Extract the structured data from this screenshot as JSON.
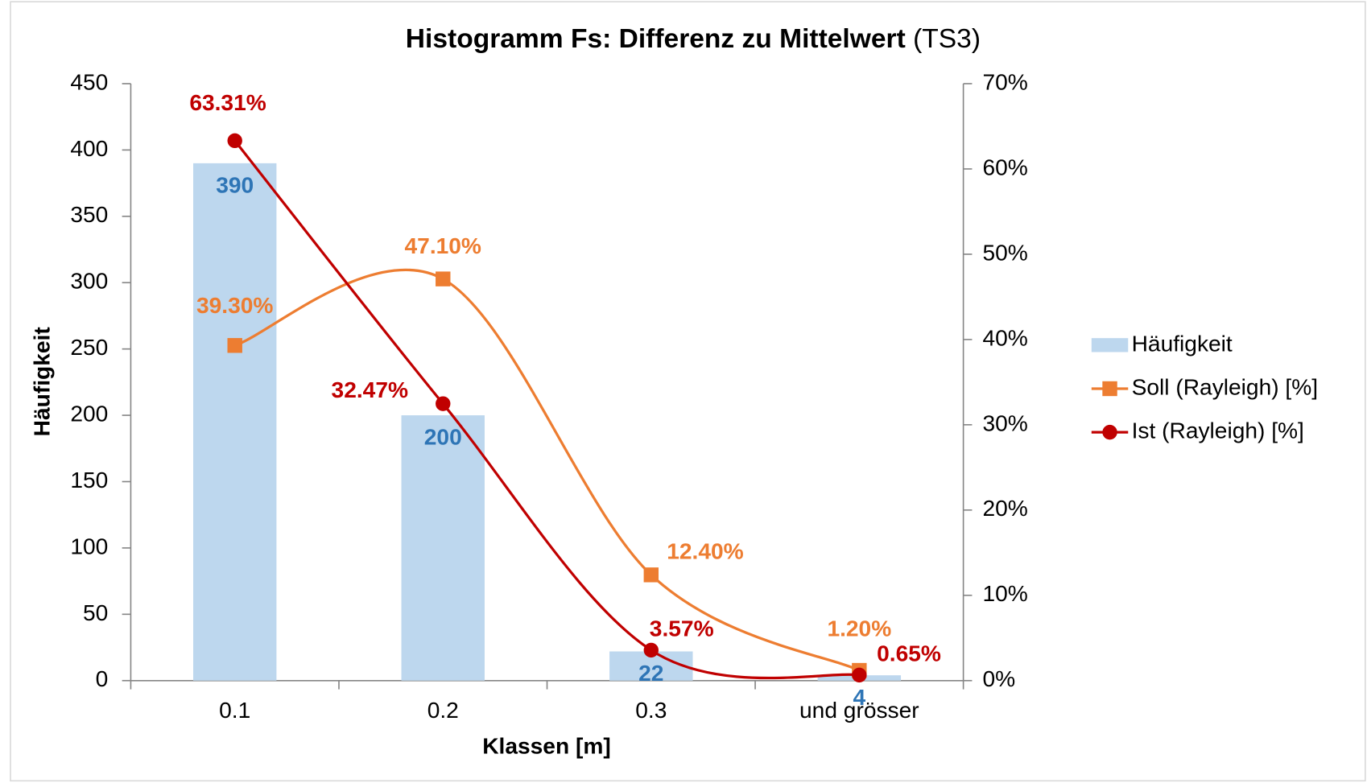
{
  "chart_data": {
    "type": "bar",
    "title": "Histogramm Fs: Differenz zu Mittelwert",
    "title_suffix": "(TS3)",
    "x_label": "Klassen [m]",
    "y_label": "Häufigkeit",
    "categories": [
      "0.1",
      "0.2",
      "0.3",
      "und grösser"
    ],
    "ylim": [
      0,
      450
    ],
    "yticks": [
      0,
      50,
      100,
      150,
      200,
      250,
      300,
      350,
      400,
      450
    ],
    "y2lim": [
      0,
      70
    ],
    "y2ticks": [
      {
        "value": 0,
        "label": "0%"
      },
      {
        "value": 10,
        "label": "10%"
      },
      {
        "value": 20,
        "label": "20%"
      },
      {
        "value": 30,
        "label": "30%"
      },
      {
        "value": 40,
        "label": "40%"
      },
      {
        "value": 50,
        "label": "50%"
      },
      {
        "value": 60,
        "label": "60%"
      },
      {
        "value": 70,
        "label": "70%"
      }
    ],
    "legend": "right",
    "series": [
      {
        "name": "Häufigkeit",
        "type": "bar",
        "color": "#bdd7ee",
        "label_color": "#2e75b6",
        "values": [
          390,
          200,
          22,
          4
        ]
      },
      {
        "name": "Soll (Rayleigh) [%]",
        "type": "line",
        "axis": "y2",
        "marker": "square",
        "smooth": true,
        "color": "#ed7d31",
        "label_color": "#ed7d31",
        "values": [
          39.3,
          47.1,
          12.4,
          1.2
        ],
        "value_labels": [
          "39.30%",
          "47.10%",
          "12.40%",
          "1.20%"
        ]
      },
      {
        "name": "Ist (Rayleigh) [%]",
        "type": "line",
        "axis": "y2",
        "marker": "circle",
        "smooth": true,
        "color": "#c00000",
        "label_color": "#c00000",
        "values": [
          63.31,
          32.47,
          3.57,
          0.65
        ],
        "value_labels": [
          "63.31%",
          "32.47%",
          "3.57%",
          "0.65%"
        ]
      }
    ]
  }
}
